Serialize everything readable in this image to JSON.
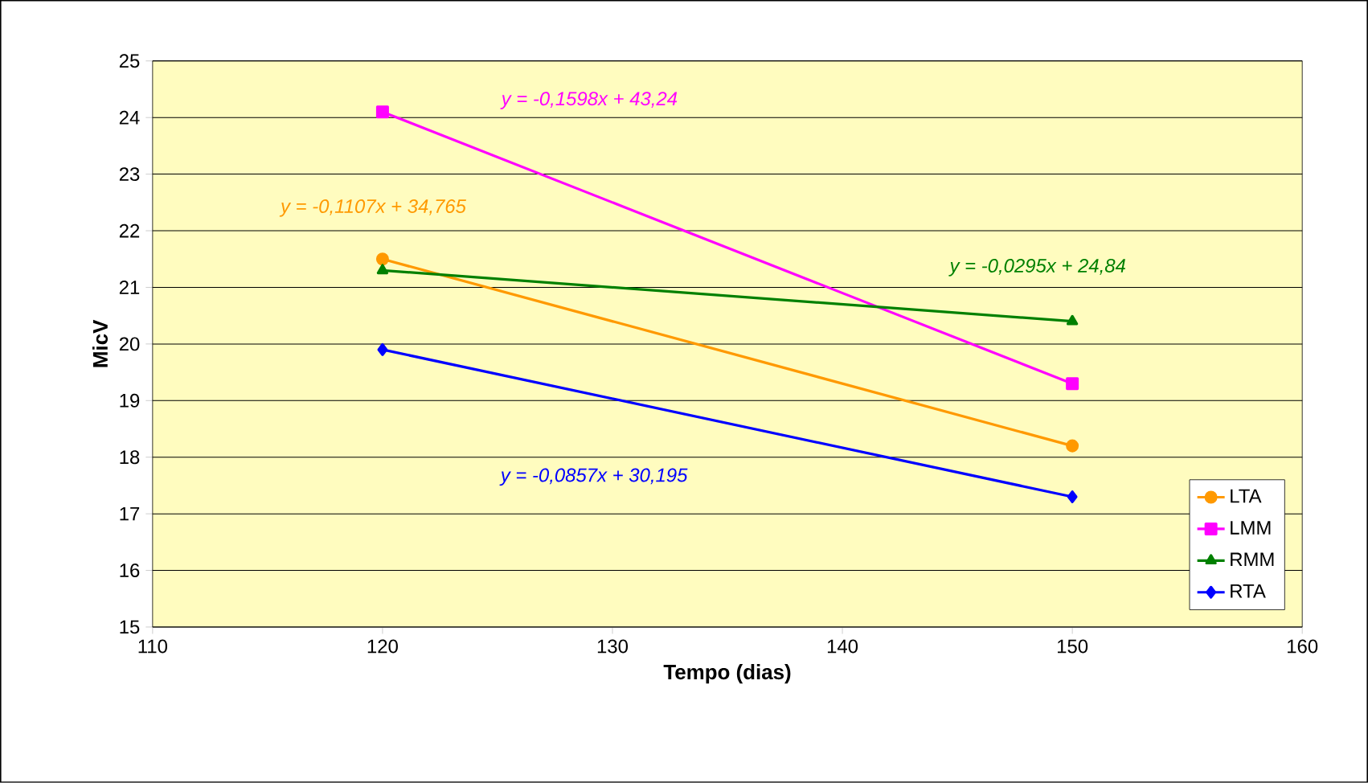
{
  "chart_data": {
    "type": "line",
    "xlabel": "Tempo (dias)",
    "ylabel": "MicV",
    "x": [
      120,
      150
    ],
    "series": [
      {
        "name": "LTA",
        "color": "#ff9900",
        "marker": "circle",
        "values": [
          21.5,
          18.2
        ]
      },
      {
        "name": "LMM",
        "color": "#ff00ff",
        "marker": "square",
        "values": [
          24.1,
          19.3
        ]
      },
      {
        "name": "RMM",
        "color": "#008000",
        "marker": "triangle",
        "values": [
          21.3,
          20.4
        ]
      },
      {
        "name": "RTA",
        "color": "#0000ff",
        "marker": "diamond",
        "values": [
          19.9,
          17.3
        ]
      }
    ],
    "annotations": [
      "y = -0,1107x + 34,765",
      "y = -0,1598x + 43,24",
      "y = -0,0295x + 24,84",
      "y = -0,0857x + 30,195"
    ],
    "xlim": [
      110,
      160
    ],
    "ylim": [
      15,
      25
    ],
    "xticks": [
      110,
      120,
      130,
      140,
      150,
      160
    ],
    "yticks": [
      15,
      16,
      17,
      18,
      19,
      20,
      21,
      22,
      23,
      24,
      25
    ],
    "grid": "y",
    "legend": "bottom right",
    "line_style": "solid"
  }
}
